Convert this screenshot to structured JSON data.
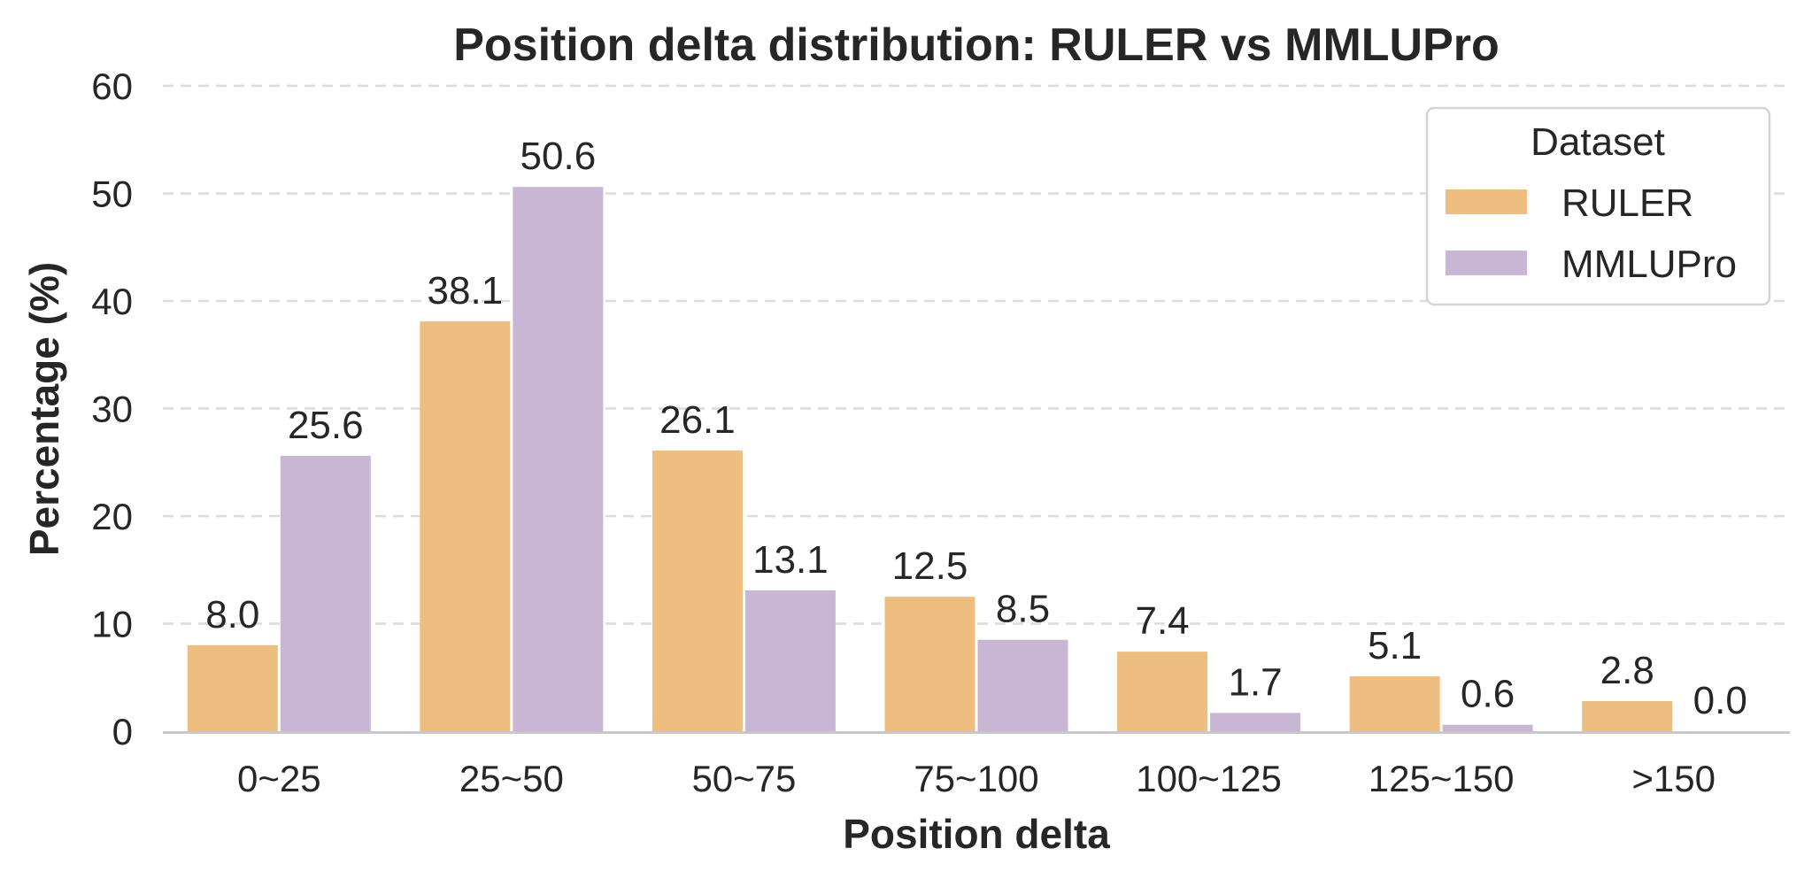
{
  "chart_data": {
    "type": "bar",
    "title": "Position delta distribution: RULER vs MMLUPro",
    "xlabel": "Position delta",
    "ylabel": "Percentage (%)",
    "categories": [
      "0~25",
      "25~50",
      "50~75",
      "75~100",
      "100~125",
      "125~150",
      ">150"
    ],
    "series": [
      {
        "name": "RULER",
        "color": "#EDBE80",
        "values": [
          8.0,
          38.1,
          26.1,
          12.5,
          7.4,
          5.1,
          2.8
        ]
      },
      {
        "name": "MMLUPro",
        "color": "#C9B5D4",
        "values": [
          25.6,
          50.6,
          13.1,
          8.5,
          1.7,
          0.6,
          0.0
        ]
      }
    ],
    "ylim": [
      0,
      60
    ],
    "yticks": [
      "0",
      "10",
      "20",
      "30",
      "40",
      "50",
      "60"
    ],
    "grid": true,
    "legend": {
      "title": "Dataset",
      "placement": "top-right"
    }
  }
}
